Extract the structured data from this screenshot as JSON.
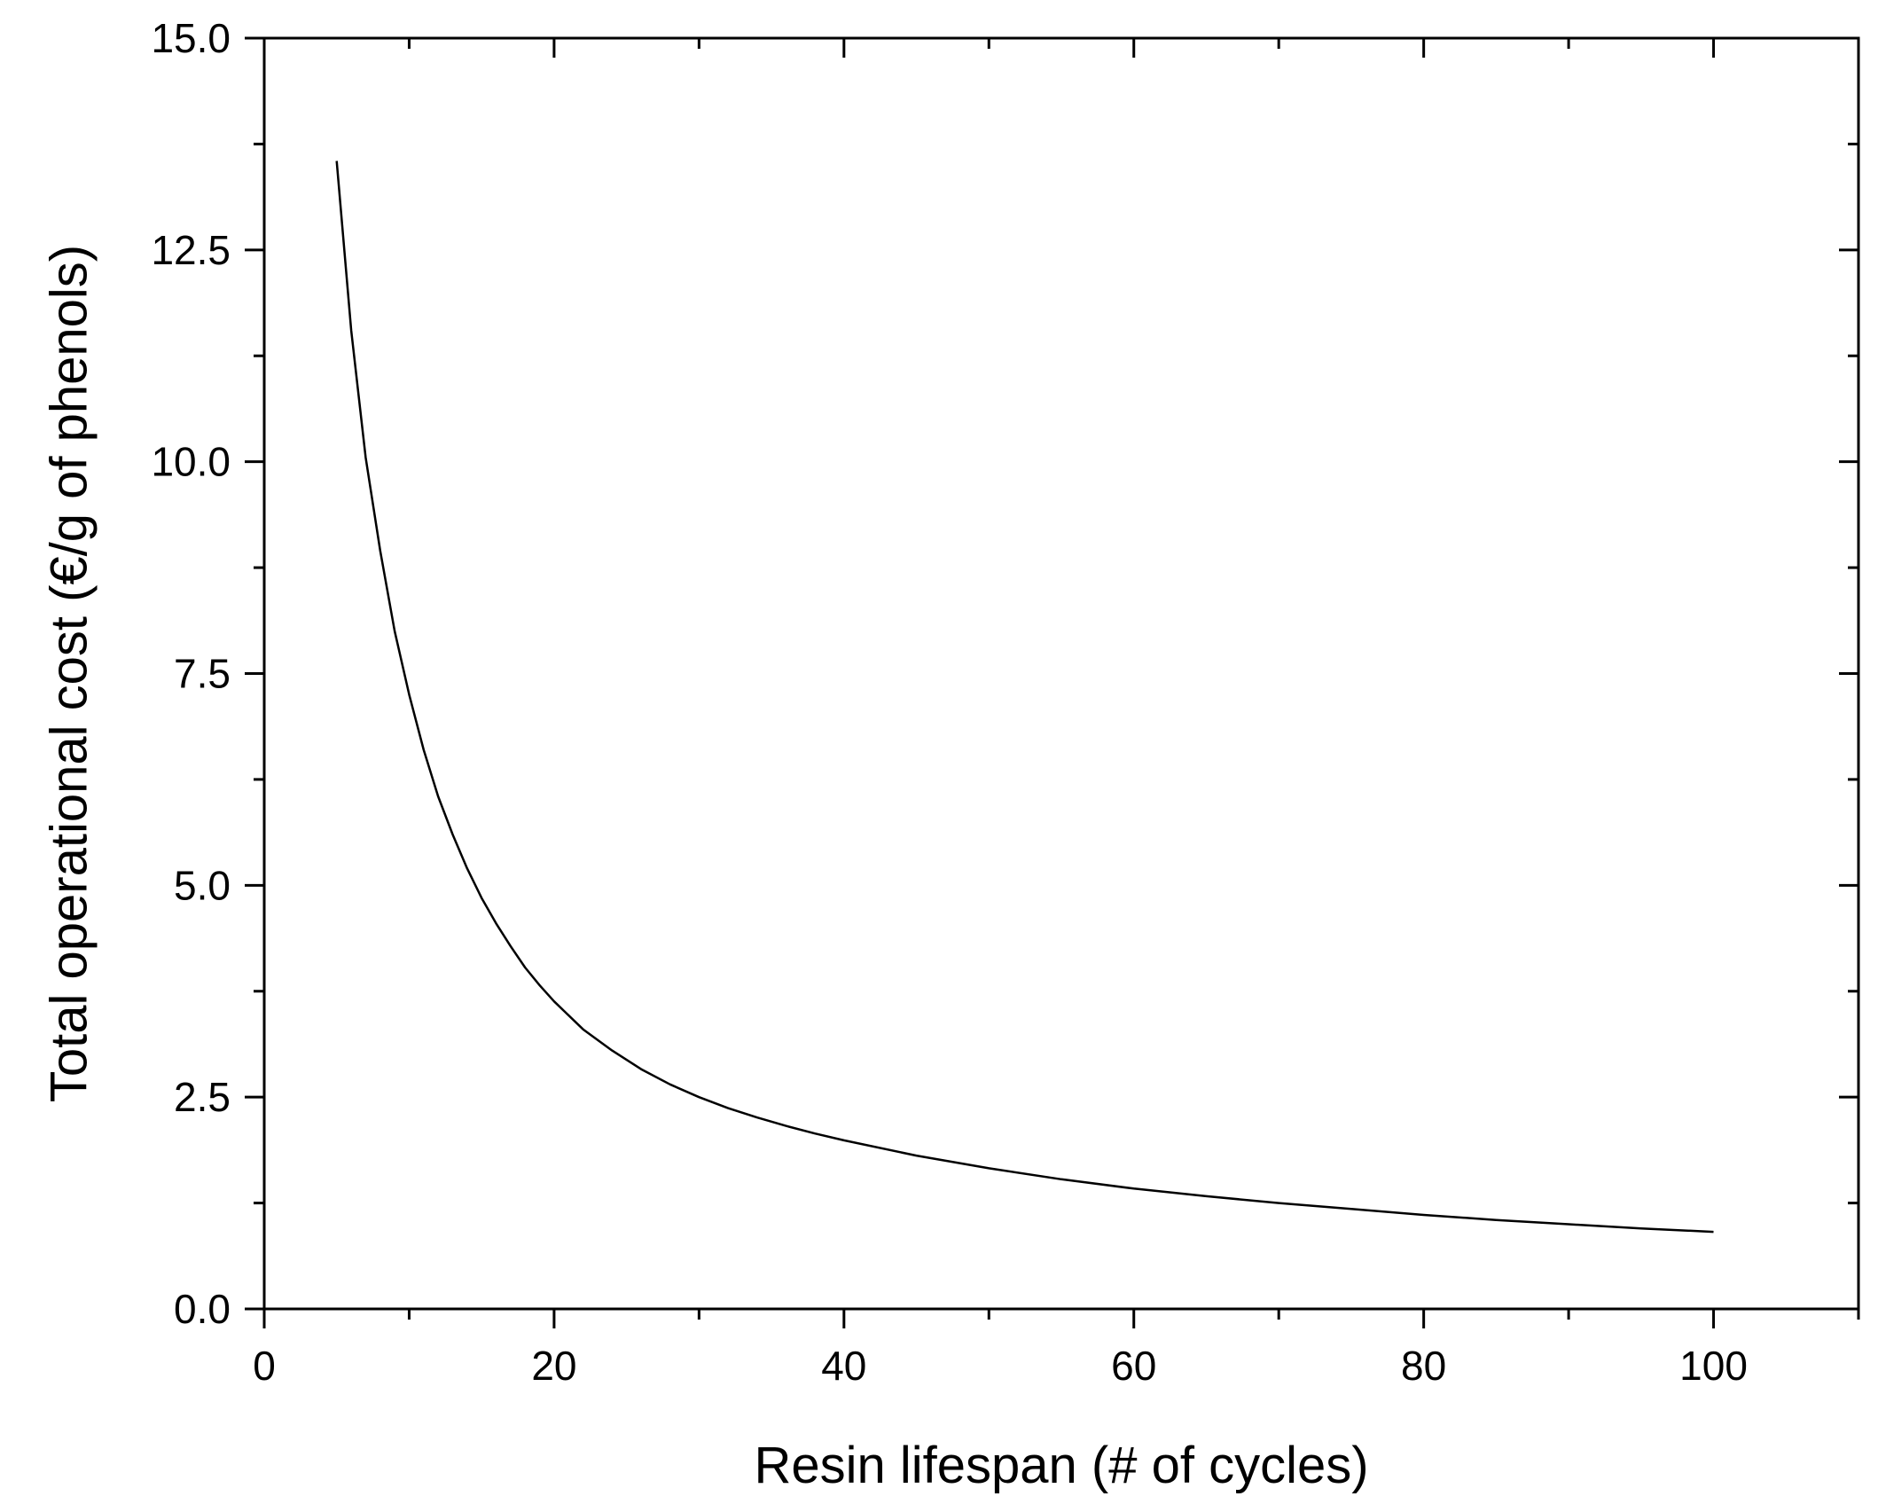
{
  "chart_data": {
    "type": "line",
    "title": "",
    "xlabel": "Resin lifespan (# of cycles)",
    "ylabel": "Total operational cost (€/g of phenols)",
    "xlim": [
      0,
      110
    ],
    "ylim": [
      0,
      15
    ],
    "x_ticks": [
      0,
      20,
      40,
      60,
      80,
      100
    ],
    "x_tick_labels": [
      "0",
      "20",
      "40",
      "60",
      "80",
      "100"
    ],
    "x_minor_ticks": [
      10,
      30,
      50,
      70,
      90,
      110
    ],
    "y_ticks": [
      0,
      2.5,
      5,
      7.5,
      10,
      12.5,
      15
    ],
    "y_tick_labels": [
      "0.0",
      "2.5",
      "5.0",
      "7.5",
      "10.0",
      "12.5",
      "15.0"
    ],
    "y_minor_ticks": [
      1.25,
      3.75,
      6.25,
      8.75,
      11.25,
      13.75
    ],
    "grid": false,
    "legend": "none",
    "series": [
      {
        "color": "#000000",
        "x": [
          5,
          6,
          7,
          8,
          9,
          10,
          11,
          12,
          13,
          14,
          15,
          16,
          17,
          18,
          19,
          20,
          22,
          24,
          26,
          28,
          30,
          32,
          34,
          36,
          38,
          40,
          45,
          50,
          55,
          60,
          65,
          70,
          75,
          80,
          85,
          90,
          95,
          100
        ],
        "y": [
          13.55,
          11.55,
          10.05,
          8.95,
          8.0,
          7.25,
          6.6,
          6.05,
          5.6,
          5.2,
          4.85,
          4.55,
          4.28,
          4.03,
          3.82,
          3.63,
          3.3,
          3.05,
          2.83,
          2.65,
          2.5,
          2.37,
          2.26,
          2.16,
          2.07,
          1.99,
          1.81,
          1.66,
          1.53,
          1.42,
          1.33,
          1.25,
          1.18,
          1.11,
          1.05,
          1.0,
          0.95,
          0.91
        ]
      }
    ]
  }
}
